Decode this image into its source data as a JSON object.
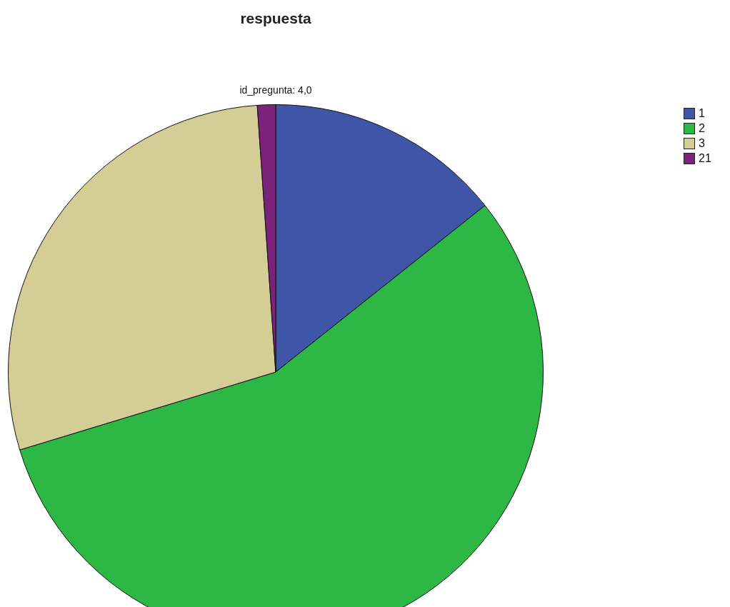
{
  "chart_data": {
    "type": "pie",
    "title": "respuesta",
    "annotations": [
      "id_pregunta: 4,0"
    ],
    "categories": [
      "1",
      "2",
      "3",
      "21"
    ],
    "values": [
      14.3,
      56.0,
      28.6,
      1.1
    ],
    "colors": [
      "#3f56a8",
      "#2db845",
      "#d4cd96",
      "#7b237b"
    ],
    "legend": "top right"
  }
}
